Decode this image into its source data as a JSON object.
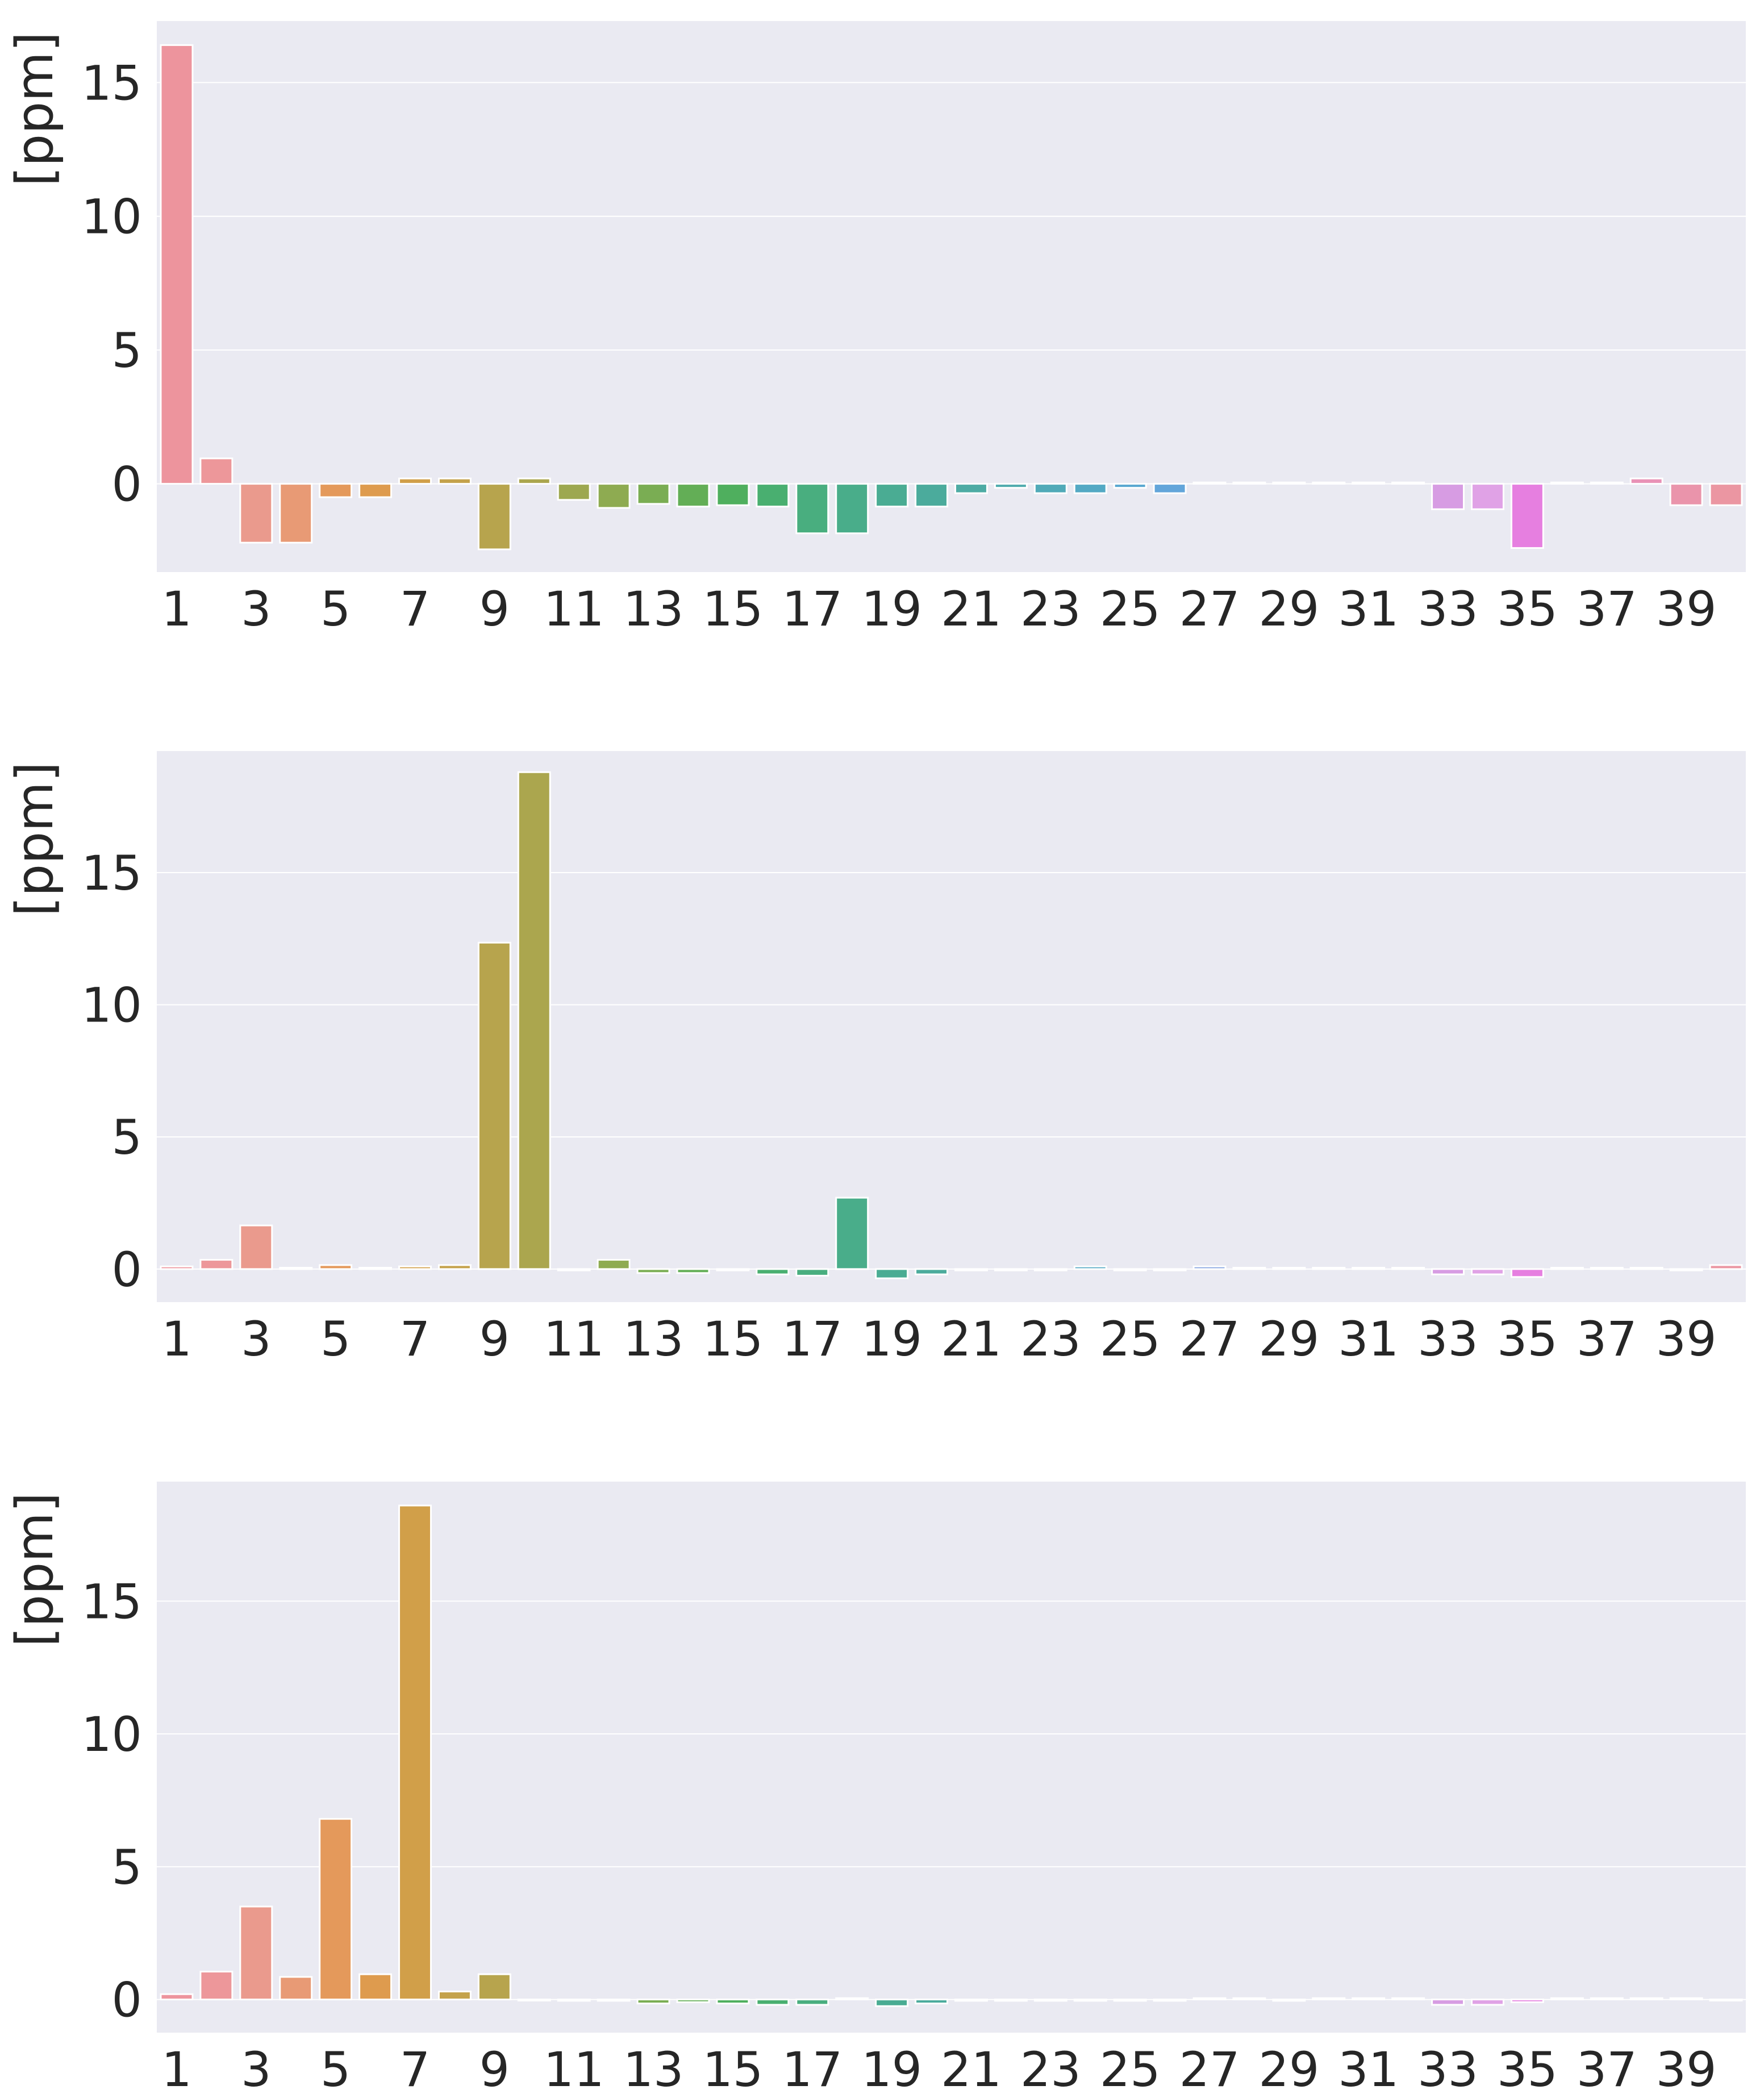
{
  "chart_data": [
    {
      "type": "bar",
      "ylabel": "[ppm]",
      "categories": [
        "1",
        "2",
        "3",
        "4",
        "5",
        "6",
        "7",
        "8",
        "9",
        "10",
        "11",
        "12",
        "13",
        "14",
        "15",
        "16",
        "17",
        "18",
        "19",
        "20",
        "21",
        "22",
        "23",
        "24",
        "25",
        "26",
        "27",
        "28",
        "29",
        "30",
        "31",
        "32",
        "33",
        "34",
        "35",
        "36",
        "37",
        "38",
        "39",
        "40"
      ],
      "x_tick_labels": [
        "1",
        "3",
        "5",
        "7",
        "9",
        "11",
        "13",
        "15",
        "17",
        "19",
        "21",
        "23",
        "25",
        "27",
        "29",
        "31",
        "33",
        "35",
        "37",
        "39"
      ],
      "y_ticks": [
        0,
        5,
        10,
        15
      ],
      "ylim": [
        -3.3,
        17.3
      ],
      "grid": true,
      "values": [
        16.4,
        0.95,
        -2.2,
        -2.2,
        -0.5,
        -0.5,
        0.2,
        0.2,
        -2.45,
        0.2,
        -0.6,
        -0.9,
        -0.75,
        -0.85,
        -0.8,
        -0.85,
        -1.85,
        -1.85,
        -0.85,
        -0.85,
        -0.35,
        -0.15,
        -0.35,
        -0.35,
        -0.15,
        -0.35,
        0.05,
        0.05,
        0.05,
        0.05,
        0.05,
        0.05,
        -0.95,
        -0.95,
        -2.4,
        0.05,
        0.05,
        0.2,
        -0.8,
        -0.8
      ]
    },
    {
      "type": "bar",
      "ylabel": "[ppm]",
      "categories": [
        "1",
        "2",
        "3",
        "4",
        "5",
        "6",
        "7",
        "8",
        "9",
        "10",
        "11",
        "12",
        "13",
        "14",
        "15",
        "16",
        "17",
        "18",
        "19",
        "20",
        "21",
        "22",
        "23",
        "24",
        "25",
        "26",
        "27",
        "28",
        "29",
        "30",
        "31",
        "32",
        "33",
        "34",
        "35",
        "36",
        "37",
        "38",
        "39",
        "40"
      ],
      "x_tick_labels": [
        "1",
        "3",
        "5",
        "7",
        "9",
        "11",
        "13",
        "15",
        "17",
        "19",
        "21",
        "23",
        "25",
        "27",
        "29",
        "31",
        "33",
        "35",
        "37",
        "39"
      ],
      "y_ticks": [
        0,
        5,
        10,
        15
      ],
      "ylim": [
        -1.25,
        19.6
      ],
      "grid": true,
      "values": [
        0.1,
        0.35,
        1.65,
        0.05,
        0.15,
        0.05,
        0.1,
        0.15,
        12.35,
        18.8,
        -0.05,
        0.35,
        -0.15,
        -0.15,
        -0.05,
        -0.2,
        -0.25,
        2.7,
        -0.35,
        -0.2,
        -0.05,
        -0.05,
        -0.05,
        0.1,
        -0.05,
        -0.05,
        0.1,
        0.05,
        0.05,
        0.05,
        0.05,
        0.05,
        -0.2,
        -0.2,
        -0.3,
        0.05,
        0.05,
        0.05,
        -0.05,
        0.15
      ]
    },
    {
      "type": "bar",
      "ylabel": "[ppm]",
      "categories": [
        "1",
        "2",
        "3",
        "4",
        "5",
        "6",
        "7",
        "8",
        "9",
        "10",
        "11",
        "12",
        "13",
        "14",
        "15",
        "16",
        "17",
        "18",
        "19",
        "20",
        "21",
        "22",
        "23",
        "24",
        "25",
        "26",
        "27",
        "28",
        "29",
        "30",
        "31",
        "32",
        "33",
        "34",
        "35",
        "36",
        "37",
        "38",
        "39",
        "40"
      ],
      "x_tick_labels": [
        "1",
        "3",
        "5",
        "7",
        "9",
        "11",
        "13",
        "15",
        "17",
        "19",
        "21",
        "23",
        "25",
        "27",
        "29",
        "31",
        "33",
        "35",
        "37",
        "39"
      ],
      "y_ticks": [
        0,
        5,
        10,
        15
      ],
      "ylim": [
        -1.25,
        19.5
      ],
      "grid": true,
      "values": [
        0.2,
        1.05,
        3.5,
        0.85,
        6.8,
        0.95,
        18.6,
        0.3,
        0.95,
        0.0,
        -0.05,
        -0.05,
        -0.15,
        -0.1,
        -0.15,
        -0.2,
        -0.2,
        0.05,
        -0.25,
        -0.15,
        -0.05,
        -0.05,
        -0.05,
        -0.05,
        -0.05,
        -0.05,
        0.05,
        0.05,
        -0.05,
        0.05,
        0.05,
        0.05,
        -0.2,
        -0.2,
        -0.1,
        0.05,
        0.05,
        0.05,
        0.05,
        0.0
      ]
    }
  ],
  "colors": {
    "panel_background": "#eaeaf2",
    "grid": "#ffffff",
    "text": "#262626",
    "palette": [
      "#ed949d",
      "#ed979a",
      "#ea9a8d",
      "#e89a75",
      "#e4995b",
      "#de9b4e",
      "#d19f49",
      "#c4a24b",
      "#b7a44d",
      "#aba64e",
      "#9da850",
      "#8eab51",
      "#7aad53",
      "#63ae56",
      "#4faf5e",
      "#49af70",
      "#49ae7f",
      "#49ad8a",
      "#4aac93",
      "#4bab9c",
      "#4daba4",
      "#4eabad",
      "#50aab8",
      "#53a9c4",
      "#57a7d0",
      "#62a5da",
      "#83a3e0",
      "#9aa0e2",
      "#ac9ce4",
      "#bc98e6",
      "#c994e7",
      "#d690e6",
      "#d79ce3",
      "#e0a2e6",
      "#e67fe0",
      "#e78bd0",
      "#e790c3",
      "#e992b6",
      "#ea94ab",
      "#eb96a2"
    ]
  }
}
